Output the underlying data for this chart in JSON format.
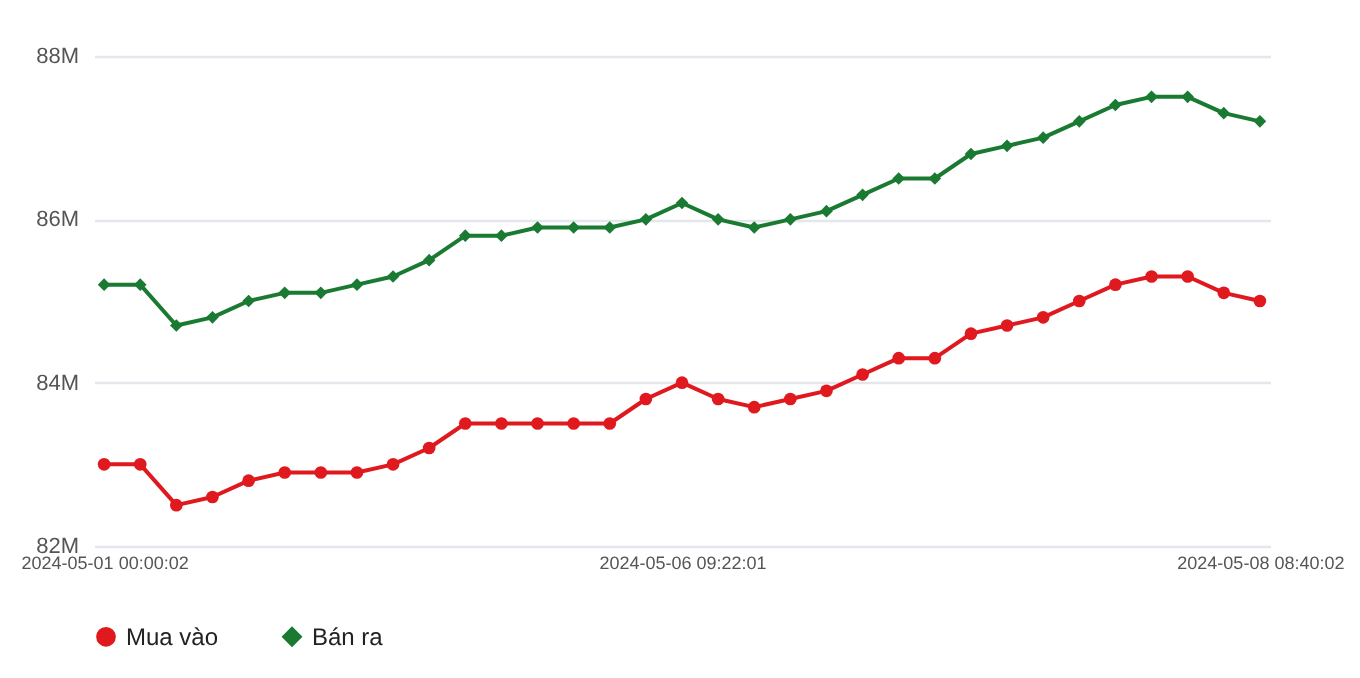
{
  "chart_data": {
    "type": "line",
    "categories": [
      "2024-05-01 00:00:02",
      null,
      null,
      null,
      null,
      null,
      null,
      null,
      null,
      null,
      null,
      null,
      null,
      null,
      null,
      null,
      "2024-05-06 09:22:01",
      null,
      null,
      null,
      null,
      null,
      null,
      null,
      null,
      null,
      null,
      null,
      null,
      null,
      null,
      null,
      "2024-05-08 08:40:02"
    ],
    "series": [
      {
        "name": "Mua vào",
        "color": "#e0191e",
        "marker": "circle",
        "values": [
          83.0,
          83.0,
          82.5,
          82.6,
          82.8,
          82.9,
          82.9,
          82.9,
          83.0,
          83.2,
          83.5,
          83.5,
          83.5,
          83.5,
          83.5,
          83.8,
          84.0,
          83.8,
          83.7,
          83.8,
          83.9,
          84.1,
          84.3,
          84.3,
          84.6,
          84.7,
          84.8,
          85.0,
          85.2,
          85.3,
          85.3,
          85.1,
          85.0
        ]
      },
      {
        "name": "Bán ra",
        "color": "#1a7a32",
        "marker": "diamond",
        "values": [
          85.2,
          85.2,
          84.7,
          84.8,
          85.0,
          85.1,
          85.1,
          85.2,
          85.3,
          85.5,
          85.8,
          85.8,
          85.9,
          85.9,
          85.9,
          86.0,
          86.2,
          86.0,
          85.9,
          86.0,
          86.1,
          86.3,
          86.5,
          86.5,
          86.8,
          86.9,
          87.0,
          87.2,
          87.4,
          87.5,
          87.5,
          87.3,
          87.2
        ]
      }
    ],
    "ylim": [
      82,
      88
    ],
    "yticks": [
      {
        "value": 82,
        "label": "82M"
      },
      {
        "value": 84,
        "label": "84M"
      },
      {
        "value": 86,
        "label": "86M"
      },
      {
        "value": 88,
        "label": "88M"
      }
    ],
    "grid": "y",
    "legend": "bottom",
    "line_style": "solid"
  }
}
